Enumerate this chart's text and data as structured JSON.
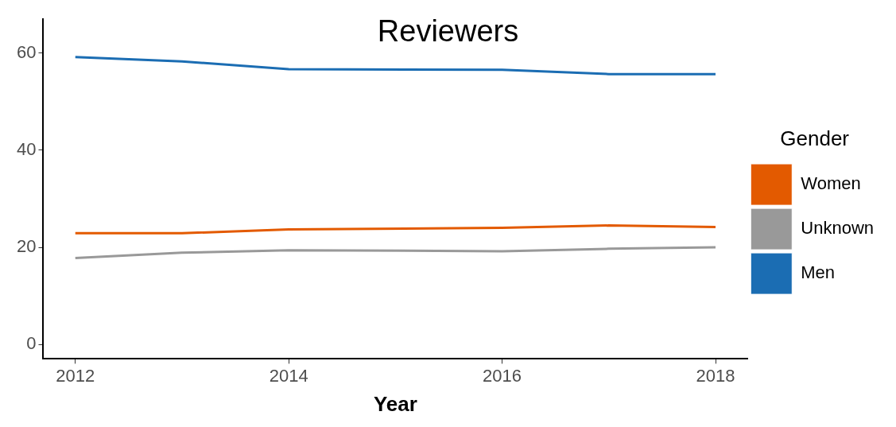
{
  "chart_data": {
    "type": "line",
    "title": "Reviewers",
    "xlabel": "Year",
    "legend_title": "Gender",
    "x": [
      2012,
      2013,
      2014,
      2016,
      2017,
      2018
    ],
    "series": [
      {
        "name": "Women",
        "color": "#e35a00",
        "values": [
          22.9,
          22.9,
          23.7,
          24.0,
          24.5,
          24.2
        ]
      },
      {
        "name": "Unknown",
        "color": "#999999",
        "values": [
          17.8,
          18.9,
          19.4,
          19.2,
          19.7,
          20.0
        ]
      },
      {
        "name": "Men",
        "color": "#1b6db3",
        "values": [
          59.2,
          58.3,
          56.7,
          56.6,
          55.7,
          55.7
        ]
      }
    ],
    "xlim": [
      2011.7,
      2018.3
    ],
    "xticks": [
      2012,
      2014,
      2016,
      2018
    ],
    "ylim": [
      -3,
      67
    ],
    "yticks": [
      0,
      20,
      40,
      60
    ],
    "grid": false,
    "legend": "right",
    "marker": "none",
    "line_style": "solid"
  }
}
